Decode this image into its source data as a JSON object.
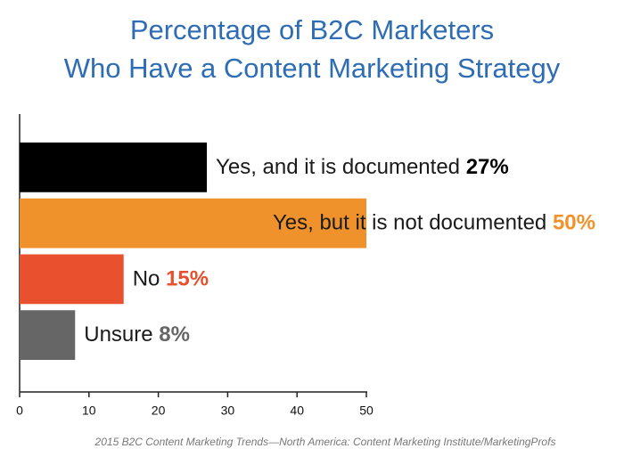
{
  "chart_data": {
    "type": "hbar",
    "title": [
      "Percentage of B2C Marketers",
      "Who Have a Content Marketing Strategy"
    ],
    "categories": [
      "Yes, and it is documented",
      "Yes, but it is not documented",
      "No",
      "Unsure"
    ],
    "values": [
      27,
      50,
      15,
      8
    ],
    "value_labels": [
      "27%",
      "50%",
      "15%",
      "8%"
    ],
    "colors": [
      "#000000",
      "#f0922b",
      "#e8502e",
      "#666666"
    ],
    "xlim": [
      0,
      50
    ],
    "xticks": [
      0,
      10,
      20,
      30,
      40,
      50
    ],
    "source": "2015 B2C Content Marketing Trends—North America: Content Marketing Institute/MarketingProfs"
  }
}
